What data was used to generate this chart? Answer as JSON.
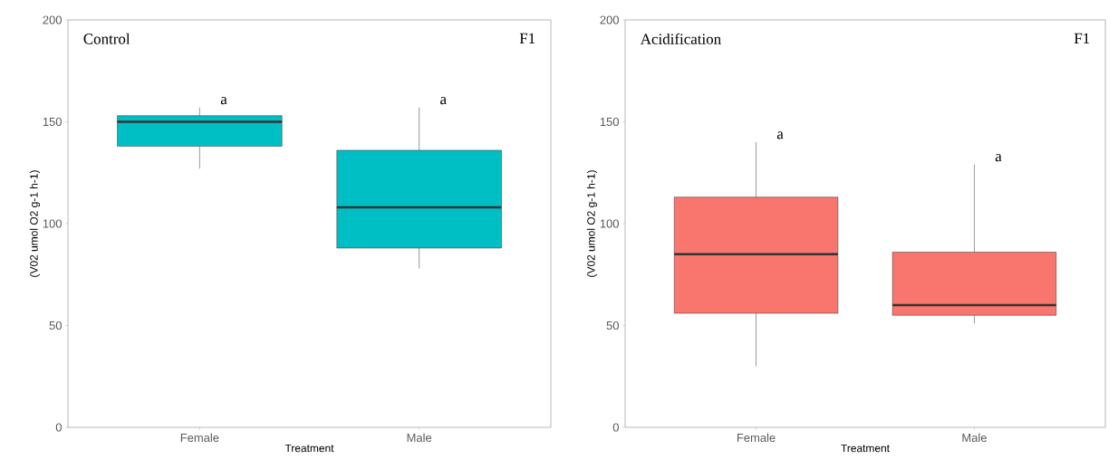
{
  "chart_data": [
    {
      "type": "box",
      "categories": [
        "Female",
        "Male"
      ],
      "xlabel": "Treatment",
      "ylabel": "(V02 umol O2 g-1 h-1)",
      "ylim": [
        0,
        200
      ],
      "yticks": [
        0,
        50,
        100,
        150,
        200
      ],
      "grid": false,
      "series": [
        {
          "color": "#00bfc4",
          "boxes": [
            {
              "low": 127,
              "q1": 138,
              "median": 150,
              "q3": 153,
              "high": 157
            },
            {
              "low": 78,
              "q1": 88,
              "median": 108,
              "q3": 136,
              "high": 157
            }
          ]
        }
      ],
      "annotations": [
        "Control",
        "F1",
        "a",
        "a"
      ]
    },
    {
      "type": "box",
      "categories": [
        "Female",
        "Male"
      ],
      "xlabel": "Treatment",
      "ylabel": "(V02 umol O2 g-1 h-1)",
      "ylim": [
        0,
        200
      ],
      "yticks": [
        0,
        50,
        100,
        150,
        200
      ],
      "grid": false,
      "series": [
        {
          "color": "#f8766d",
          "boxes": [
            {
              "low": 30,
              "q1": 56,
              "median": 85,
              "q3": 113,
              "high": 140
            },
            {
              "low": 51,
              "q1": 55,
              "median": 60,
              "q3": 86,
              "high": 129
            }
          ]
        }
      ],
      "annotations": [
        "Acidification",
        "F1",
        "a",
        "a"
      ]
    }
  ]
}
